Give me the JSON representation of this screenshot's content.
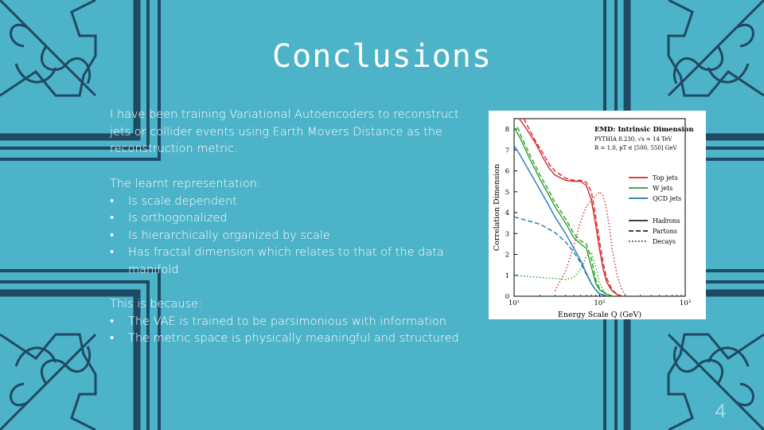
{
  "slide": {
    "title": "Conclusions",
    "paragraph1": "I have been training Variational Autoencoders to reconstruct jets or collider events using Earth Movers Distance as the reconstruction metric.",
    "paragraph2_heading": "The learnt representation:",
    "paragraph2_bullets": [
      "Is scale dependent",
      "Is orthogonalized",
      "Is hierarchically organized by scale",
      "Has fractal dimension which relates to that of the data manifold"
    ],
    "paragraph3_heading": "This is because:",
    "paragraph3_bullets": [
      "The VAE is trained to be parsimonious with information",
      "The metric space is physically meaningful and structured"
    ],
    "page_number": "4",
    "bullet_char": "•"
  },
  "chart_data": {
    "type": "line",
    "title": "EMD: Intrinsic Dimension",
    "subtitle_line1": "PYTHIA 8.230, √s = 14 TeV",
    "subtitle_line2": "R = 1.0, pT ∈ [500, 550] GeV",
    "xlabel": "Energy Scale Q (GeV)",
    "ylabel": "Correlation Dimension",
    "xscale": "log",
    "xlim": [
      10,
      1000
    ],
    "ylim": [
      0,
      8.5
    ],
    "x_ticks": [
      "10¹",
      "10²",
      "10³"
    ],
    "y_ticks": [
      "0",
      "1",
      "2",
      "3",
      "4",
      "5",
      "6",
      "7",
      "8"
    ],
    "grid": false,
    "legend_colors": [
      {
        "name": "Top jets",
        "color": "#d62728"
      },
      {
        "name": "W jets",
        "color": "#2ca02c"
      },
      {
        "name": "QCD jets",
        "color": "#1f77b4"
      }
    ],
    "legend_styles": [
      {
        "name": "Hadrons",
        "style": "solid"
      },
      {
        "name": "Partons",
        "style": "dashed"
      },
      {
        "name": "Decays",
        "style": "dotted"
      }
    ],
    "series": [
      {
        "name": "Top jets Hadrons",
        "color": "#d62728",
        "style": "solid",
        "x": [
          11.5,
          14,
          18,
          22,
          26,
          30,
          40,
          50,
          60,
          70,
          80,
          90,
          100,
          110,
          120,
          140,
          160,
          180
        ],
        "y": [
          8.5,
          8.0,
          7.3,
          6.6,
          6.1,
          5.8,
          5.55,
          5.5,
          5.5,
          5.3,
          4.6,
          3.4,
          2.2,
          1.3,
          0.7,
          0.25,
          0.08,
          0.02
        ]
      },
      {
        "name": "Top jets Partons",
        "color": "#d62728",
        "style": "dashed",
        "x": [
          13,
          15,
          18,
          22,
          26,
          30,
          40,
          50,
          60,
          70,
          80,
          90,
          100,
          110,
          120,
          140,
          160,
          180
        ],
        "y": [
          8.5,
          8.0,
          7.4,
          6.8,
          6.3,
          6.0,
          5.65,
          5.55,
          5.55,
          5.45,
          5.0,
          3.8,
          2.6,
          1.6,
          0.9,
          0.3,
          0.1,
          0.02
        ]
      },
      {
        "name": "Top jets Decays",
        "color": "#d62728",
        "style": "dotted",
        "x": [
          30,
          40,
          50,
          60,
          70,
          80,
          90,
          100,
          110,
          120,
          130,
          140,
          160,
          180,
          200
        ],
        "y": [
          0.25,
          1.2,
          2.4,
          3.6,
          4.3,
          4.6,
          4.8,
          5.0,
          4.8,
          4.2,
          3.3,
          2.3,
          1.0,
          0.35,
          0.05
        ]
      },
      {
        "name": "W jets Hadrons",
        "color": "#2ca02c",
        "style": "solid",
        "x": [
          10,
          12,
          14,
          16,
          18,
          20,
          25,
          30,
          40,
          50,
          60,
          70,
          80,
          90,
          100,
          120,
          140
        ],
        "y": [
          8.1,
          7.5,
          6.9,
          6.4,
          6.0,
          5.6,
          4.9,
          4.3,
          3.5,
          2.8,
          2.5,
          2.3,
          1.4,
          0.6,
          0.3,
          0.1,
          0.02
        ]
      },
      {
        "name": "W jets Partons",
        "color": "#2ca02c",
        "style": "dashed",
        "x": [
          11,
          12,
          14,
          16,
          18,
          20,
          25,
          30,
          40,
          50,
          60,
          70,
          80,
          90,
          100,
          120,
          140
        ],
        "y": [
          8.1,
          7.7,
          7.1,
          6.6,
          6.2,
          5.8,
          5.1,
          4.5,
          3.7,
          3.0,
          2.65,
          2.5,
          1.8,
          0.8,
          0.35,
          0.1,
          0.02
        ]
      },
      {
        "name": "W jets Decays",
        "color": "#2ca02c",
        "style": "dotted",
        "x": [
          10,
          20,
          30,
          40,
          50,
          60,
          70,
          80,
          90,
          100,
          120
        ],
        "y": [
          1.0,
          0.9,
          0.85,
          0.8,
          0.9,
          1.3,
          1.9,
          2.1,
          1.4,
          0.6,
          0.1
        ]
      },
      {
        "name": "QCD jets Hadrons",
        "color": "#1f77b4",
        "style": "solid",
        "x": [
          10,
          12,
          14,
          16,
          20,
          25,
          30,
          40,
          50,
          60,
          70,
          80,
          90,
          100,
          120
        ],
        "y": [
          7.2,
          6.7,
          6.2,
          5.8,
          5.1,
          4.4,
          3.8,
          3.0,
          2.3,
          1.7,
          1.1,
          0.6,
          0.3,
          0.12,
          0.02
        ]
      },
      {
        "name": "QCD jets Partons",
        "color": "#1f77b4",
        "style": "dashed",
        "x": [
          10,
          20,
          30,
          40,
          50,
          60,
          70,
          80,
          90,
          100,
          120
        ],
        "y": [
          3.8,
          3.45,
          3.05,
          2.6,
          2.1,
          1.6,
          1.05,
          0.6,
          0.3,
          0.12,
          0.02
        ]
      }
    ]
  }
}
